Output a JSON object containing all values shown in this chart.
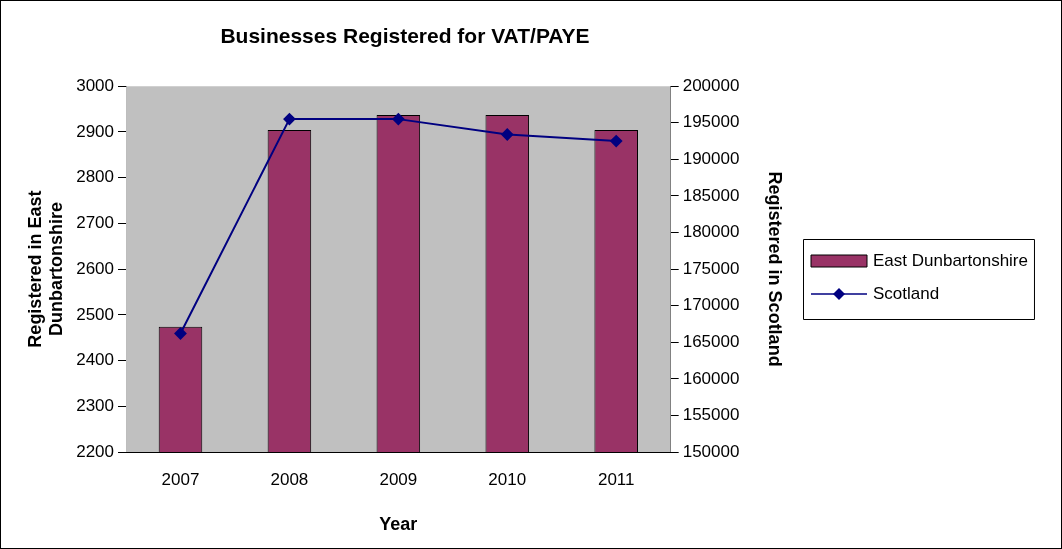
{
  "chart_data": {
    "type": "bar",
    "title": "Businesses Registered for VAT/PAYE",
    "xlabel": "Year",
    "ylabel": "Registered in East Dunbartonshire",
    "y2label": "Registered in Scotland",
    "categories": [
      "2007",
      "2008",
      "2009",
      "2010",
      "2011"
    ],
    "series": [
      {
        "name": "East Dunbartonshire",
        "color": "#993366",
        "values": [
          2474,
          2904,
          2937,
          2937,
          2904
        ]
      },
      {
        "name": "Scotland",
        "type": "line",
        "axis": "y2",
        "color": "#000080",
        "marker": "diamond",
        "values": [
          166200,
          195500,
          195500,
          193400,
          192500
        ]
      }
    ],
    "ylim": [
      2200,
      3000
    ],
    "yticks": [
      2200,
      2300,
      2400,
      2500,
      2600,
      2700,
      2800,
      2900,
      3000
    ],
    "y2lim": [
      150000,
      200000
    ],
    "y2ticks": [
      150000,
      155000,
      160000,
      165000,
      170000,
      175000,
      180000,
      185000,
      190000,
      195000,
      200000
    ],
    "grid": false,
    "legend": "right"
  }
}
